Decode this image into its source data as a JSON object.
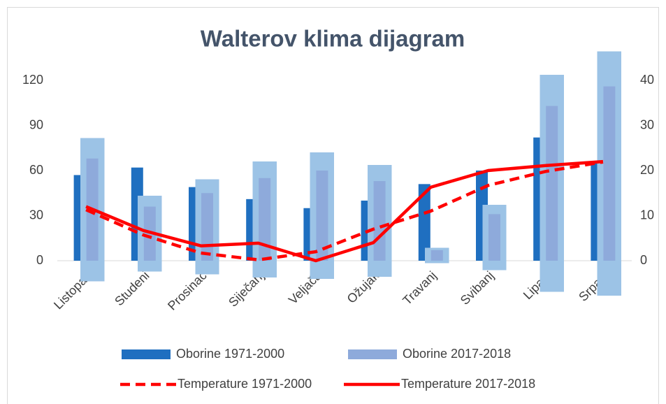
{
  "chart_data": {
    "type": "bar-line",
    "title": "Walterov klima dijagram",
    "categories": [
      "Listopad",
      "Studeni",
      "Prosinac",
      "Siječanj",
      "Veljača",
      "Ožujak",
      "Travanj",
      "Svibanj",
      "Lipanj",
      "Srpanj"
    ],
    "series": [
      {
        "name": "Oborine 1971-2000",
        "kind": "bar",
        "color": "#1f6fc0",
        "values": [
          57,
          62,
          49,
          41,
          35,
          40,
          51,
          60,
          82,
          65
        ]
      },
      {
        "name": "Oborine 2017-2018",
        "kind": "bar",
        "color": "#8eaadb",
        "values": [
          68,
          36,
          45,
          55,
          60,
          53,
          7,
          31,
          103,
          116
        ]
      },
      {
        "name": "Temperature 1971-2000",
        "kind": "line",
        "dash": true,
        "axis": "y2",
        "color": "#ff0000",
        "values": [
          11.3,
          5.7,
          1.7,
          0.2,
          2,
          7,
          11,
          16.7,
          19.8,
          21.9
        ]
      },
      {
        "name": "Temperature 2017-2018",
        "kind": "line",
        "dash": false,
        "axis": "y2",
        "color": "#ff0000",
        "values": [
          12,
          6.7,
          3.3,
          3.9,
          0,
          4,
          16.3,
          20,
          21.1,
          22
        ]
      }
    ],
    "ylim": [
      0,
      120
    ],
    "yticks": [
      0,
      30,
      60,
      90,
      120
    ],
    "y2lim": [
      0,
      40
    ],
    "y2ticks": [
      0,
      10,
      20,
      30,
      40
    ],
    "grid": false
  }
}
